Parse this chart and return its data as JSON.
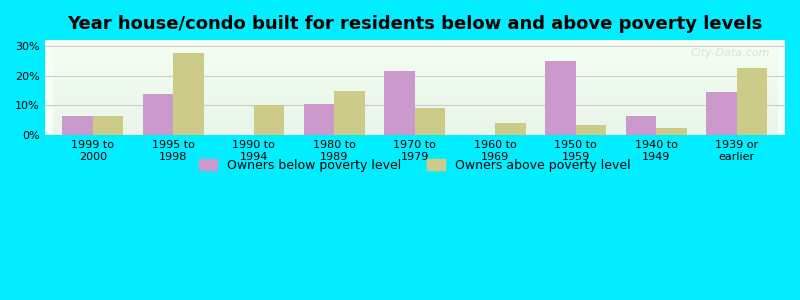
{
  "title": "Year house/condo built for residents below and above poverty levels",
  "categories": [
    "1999 to\n2000",
    "1995 to\n1998",
    "1990 to\n1994",
    "1980 to\n1989",
    "1970 to\n1979",
    "1960 to\n1969",
    "1950 to\n1959",
    "1940 to\n1949",
    "1939 or\nearlier"
  ],
  "below_poverty": [
    6.5,
    14.0,
    0.0,
    10.5,
    21.5,
    0.0,
    25.0,
    6.5,
    14.5
  ],
  "above_poverty": [
    6.5,
    27.5,
    10.0,
    15.0,
    9.0,
    4.0,
    3.5,
    2.5,
    22.5
  ],
  "below_color": "#cc99cc",
  "above_color": "#cccc88",
  "background_outer": "#00eeff",
  "background_inner_top": "#f5fff5",
  "background_inner_bottom": "#e8f5e8",
  "grid_color": "#cccccc",
  "yticks": [
    0,
    10,
    20,
    30
  ],
  "ylim": [
    0,
    32
  ],
  "bar_width": 0.38,
  "title_fontsize": 13,
  "tick_fontsize": 8,
  "legend_fontsize": 9
}
